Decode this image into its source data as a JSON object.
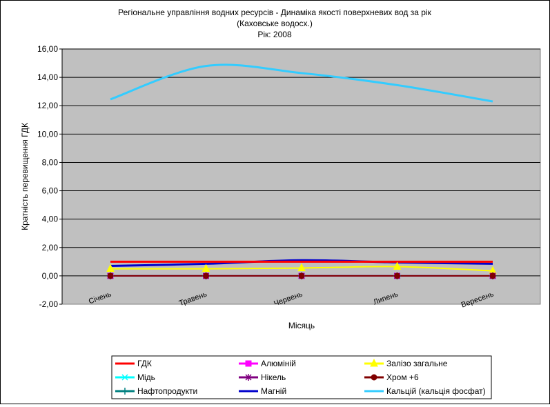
{
  "chart_data": {
    "type": "line",
    "title_lines": [
      "Регіональне управління водних ресурсів - Динаміка якості поверхневих вод за рік",
      "(Каховське водосх.)",
      "Рік: 2008"
    ],
    "xlabel": "Місяць",
    "ylabel": "Кратність перевищення ГДК",
    "ylim": [
      -2,
      16
    ],
    "ytick_labels": [
      "-2,00",
      "0,00",
      "2,00",
      "4,00",
      "6,00",
      "8,00",
      "10,00",
      "12,00",
      "14,00",
      "16,00"
    ],
    "yticks": [
      -2,
      0,
      2,
      4,
      6,
      8,
      10,
      12,
      14,
      16
    ],
    "categories": [
      "Січень",
      "Травень",
      "Червень",
      "Липень",
      "Вересень"
    ],
    "background": "#c0c0c0",
    "grid": "horizontal",
    "legend_position": "bottom",
    "series": [
      {
        "name": "ГДК",
        "color": "#ff0000",
        "marker": "none",
        "values": [
          1.0,
          1.0,
          1.0,
          1.0,
          1.0
        ]
      },
      {
        "name": "Алюміній",
        "color": "#ff00ff",
        "marker": "square",
        "values": [
          0.0,
          0.0,
          0.0,
          0.0,
          0.0
        ]
      },
      {
        "name": "Залізо загальне",
        "color": "#ffff00",
        "marker": "triangle",
        "values": [
          0.5,
          0.5,
          0.55,
          0.65,
          0.35
        ]
      },
      {
        "name": "Мідь",
        "color": "#00ffff",
        "marker": "x",
        "values": [
          0.0,
          0.0,
          0.0,
          0.0,
          0.0
        ]
      },
      {
        "name": "Нікель",
        "color": "#800080",
        "marker": "star",
        "values": [
          0.0,
          0.0,
          0.0,
          0.0,
          0.0
        ]
      },
      {
        "name": "Хром +6",
        "color": "#800000",
        "marker": "circle",
        "values": [
          0.0,
          0.0,
          0.0,
          0.0,
          0.0
        ]
      },
      {
        "name": "Нафтопродукти",
        "color": "#008080",
        "marker": "plus",
        "values": [
          0.0,
          0.0,
          0.0,
          0.0,
          0.0
        ]
      },
      {
        "name": "Магній",
        "color": "#0000cc",
        "marker": "none",
        "values": [
          0.7,
          0.85,
          1.1,
          0.95,
          0.85
        ]
      },
      {
        "name": "Кальцій (кальція фосфат)",
        "color": "#33ccff",
        "marker": "none",
        "values": [
          12.45,
          14.8,
          14.3,
          13.45,
          12.3
        ]
      }
    ]
  }
}
